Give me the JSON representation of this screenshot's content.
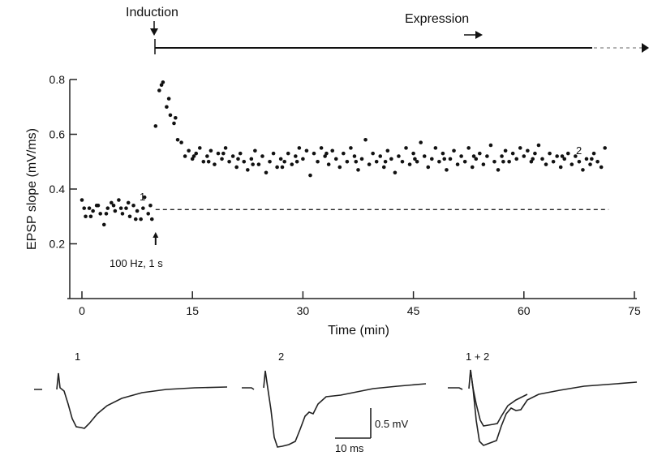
{
  "timeline": {
    "induction_label": "Induction",
    "expression_label": "Expression"
  },
  "chart_data": {
    "type": "scatter",
    "xlabel": "Time (min)",
    "ylabel": "EPSP slope (mV/ms)",
    "xlim": [
      0,
      75
    ],
    "ylim": [
      0,
      0.8
    ],
    "xticks": [
      "0",
      "15",
      "30",
      "45",
      "60",
      "75"
    ],
    "yticks": [
      "0.2",
      "0.4",
      "0.6",
      "0.8"
    ],
    "grid": false,
    "baseline": 0.325,
    "annotations": {
      "point1_label": "1",
      "point2_label": "2",
      "stimulus_label": "100 Hz, 1 s",
      "stimulus_time": 10
    },
    "points": [
      [
        0,
        0.36
      ],
      [
        0.5,
        0.3
      ],
      [
        1,
        0.33
      ],
      [
        1.5,
        0.32
      ],
      [
        2,
        0.34
      ],
      [
        2.5,
        0.31
      ],
      [
        3,
        0.27
      ],
      [
        3.5,
        0.33
      ],
      [
        4,
        0.35
      ],
      [
        4.5,
        0.32
      ],
      [
        5,
        0.36
      ],
      [
        5.5,
        0.31
      ],
      [
        6,
        0.33
      ],
      [
        6.5,
        0.3
      ],
      [
        7,
        0.34
      ],
      [
        7.5,
        0.32
      ],
      [
        8,
        0.29
      ],
      [
        8.5,
        0.37
      ],
      [
        9,
        0.31
      ],
      [
        9.5,
        0.29
      ],
      [
        0.3,
        0.33
      ],
      [
        1.2,
        0.3
      ],
      [
        2.2,
        0.34
      ],
      [
        3.3,
        0.31
      ],
      [
        4.3,
        0.34
      ],
      [
        5.3,
        0.33
      ],
      [
        6.3,
        0.35
      ],
      [
        7.3,
        0.29
      ],
      [
        8.3,
        0.33
      ],
      [
        9.3,
        0.34
      ],
      [
        10,
        0.63
      ],
      [
        10.5,
        0.76
      ],
      [
        10.8,
        0.78
      ],
      [
        11,
        0.79
      ],
      [
        11.5,
        0.7
      ],
      [
        11.8,
        0.73
      ],
      [
        12,
        0.67
      ],
      [
        12.5,
        0.64
      ],
      [
        12.7,
        0.66
      ],
      [
        13,
        0.58
      ],
      [
        13.5,
        0.57
      ],
      [
        14,
        0.52
      ],
      [
        14.5,
        0.54
      ],
      [
        15,
        0.51
      ],
      [
        15.5,
        0.53
      ],
      [
        16,
        0.55
      ],
      [
        16.5,
        0.5
      ],
      [
        17,
        0.52
      ],
      [
        17.5,
        0.54
      ],
      [
        18,
        0.49
      ],
      [
        18.5,
        0.53
      ],
      [
        19,
        0.51
      ],
      [
        19.5,
        0.55
      ],
      [
        20,
        0.5
      ],
      [
        20.5,
        0.52
      ],
      [
        21,
        0.48
      ],
      [
        21.5,
        0.53
      ],
      [
        22,
        0.5
      ],
      [
        22.5,
        0.47
      ],
      [
        23,
        0.51
      ],
      [
        23.5,
        0.54
      ],
      [
        24,
        0.49
      ],
      [
        24.5,
        0.52
      ],
      [
        25,
        0.46
      ],
      [
        25.5,
        0.5
      ],
      [
        26,
        0.53
      ],
      [
        26.5,
        0.48
      ],
      [
        27,
        0.51
      ],
      [
        27.5,
        0.5
      ],
      [
        28,
        0.53
      ],
      [
        28.5,
        0.49
      ],
      [
        29,
        0.52
      ],
      [
        29.5,
        0.55
      ],
      [
        30,
        0.51
      ],
      [
        30.5,
        0.54
      ],
      [
        31,
        0.45
      ],
      [
        31.5,
        0.53
      ],
      [
        32,
        0.5
      ],
      [
        32.5,
        0.55
      ],
      [
        33,
        0.52
      ],
      [
        33.5,
        0.49
      ],
      [
        34,
        0.54
      ],
      [
        34.5,
        0.51
      ],
      [
        35,
        0.48
      ],
      [
        35.5,
        0.53
      ],
      [
        36,
        0.5
      ],
      [
        36.5,
        0.55
      ],
      [
        37,
        0.52
      ],
      [
        37.5,
        0.47
      ],
      [
        38,
        0.51
      ],
      [
        38.5,
        0.58
      ],
      [
        39,
        0.49
      ],
      [
        39.5,
        0.53
      ],
      [
        40,
        0.5
      ],
      [
        40.5,
        0.52
      ],
      [
        41,
        0.48
      ],
      [
        41.5,
        0.54
      ],
      [
        42,
        0.51
      ],
      [
        42.5,
        0.46
      ],
      [
        43,
        0.52
      ],
      [
        43.5,
        0.5
      ],
      [
        44,
        0.55
      ],
      [
        44.5,
        0.49
      ],
      [
        45,
        0.53
      ],
      [
        45.5,
        0.5
      ],
      [
        46,
        0.57
      ],
      [
        46.5,
        0.52
      ],
      [
        47,
        0.48
      ],
      [
        47.5,
        0.51
      ],
      [
        48,
        0.55
      ],
      [
        48.5,
        0.5
      ],
      [
        49,
        0.53
      ],
      [
        49.5,
        0.47
      ],
      [
        50,
        0.51
      ],
      [
        50.5,
        0.54
      ],
      [
        51,
        0.49
      ],
      [
        51.5,
        0.52
      ],
      [
        52,
        0.5
      ],
      [
        52.5,
        0.55
      ],
      [
        53,
        0.48
      ],
      [
        53.5,
        0.51
      ],
      [
        54,
        0.53
      ],
      [
        54.5,
        0.49
      ],
      [
        55,
        0.52
      ],
      [
        55.5,
        0.56
      ],
      [
        56,
        0.5
      ],
      [
        56.5,
        0.47
      ],
      [
        57,
        0.52
      ],
      [
        57.5,
        0.54
      ],
      [
        58,
        0.5
      ],
      [
        58.5,
        0.53
      ],
      [
        59,
        0.51
      ],
      [
        59.5,
        0.55
      ],
      [
        60,
        0.52
      ],
      [
        60.5,
        0.54
      ],
      [
        61,
        0.5
      ],
      [
        61.5,
        0.53
      ],
      [
        62,
        0.56
      ],
      [
        62.5,
        0.51
      ],
      [
        63,
        0.49
      ],
      [
        63.5,
        0.53
      ],
      [
        64,
        0.5
      ],
      [
        64.5,
        0.52
      ],
      [
        65,
        0.48
      ],
      [
        65.5,
        0.51
      ],
      [
        66,
        0.53
      ],
      [
        66.5,
        0.49
      ],
      [
        67,
        0.52
      ],
      [
        67.5,
        0.5
      ],
      [
        68,
        0.47
      ],
      [
        68.5,
        0.51
      ],
      [
        69,
        0.49
      ],
      [
        69.5,
        0.53
      ],
      [
        70,
        0.5
      ],
      [
        70.5,
        0.48
      ],
      [
        71,
        0.55
      ],
      [
        15.2,
        0.52
      ],
      [
        17.2,
        0.5
      ],
      [
        19.2,
        0.53
      ],
      [
        21.2,
        0.51
      ],
      [
        23.2,
        0.49
      ],
      [
        27.2,
        0.48
      ],
      [
        29.2,
        0.5
      ],
      [
        33.2,
        0.53
      ],
      [
        37.2,
        0.5
      ],
      [
        41.2,
        0.5
      ],
      [
        45.2,
        0.51
      ],
      [
        49.2,
        0.51
      ],
      [
        53.2,
        0.52
      ],
      [
        57.2,
        0.5
      ],
      [
        61.2,
        0.51
      ],
      [
        65.2,
        0.52
      ],
      [
        69.2,
        0.51
      ]
    ]
  },
  "traces": {
    "trace1_label": "1",
    "trace2_label": "2",
    "trace3_label": "1 + 2",
    "scale_v_label": "0.5 mV",
    "scale_t_label": "10 ms"
  }
}
